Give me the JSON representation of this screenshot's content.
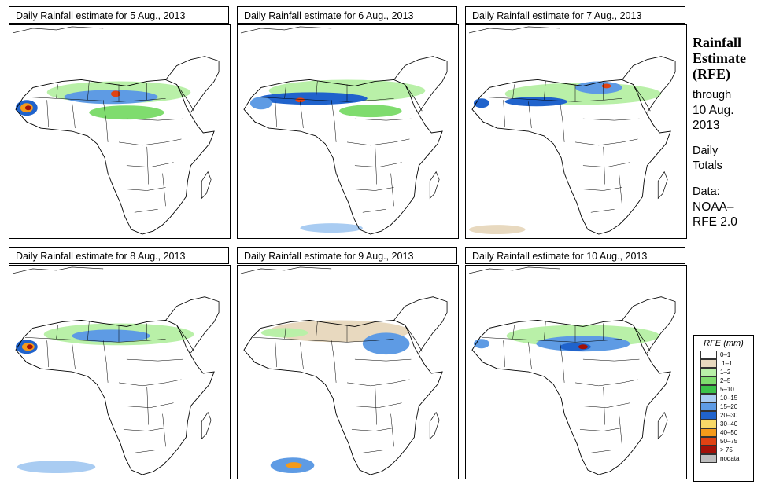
{
  "panels": [
    {
      "title": "Daily Rainfall estimate for  5 Aug., 2013"
    },
    {
      "title": "Daily Rainfall estimate for  6 Aug., 2013"
    },
    {
      "title": "Daily Rainfall estimate for  7 Aug., 2013"
    },
    {
      "title": "Daily Rainfall estimate for  8 Aug., 2013"
    },
    {
      "title": "Daily Rainfall estimate for  9 Aug., 2013"
    },
    {
      "title": "Daily Rainfall estimate for  10 Aug., 2013"
    }
  ],
  "sidebar": {
    "title_line1": "Rainfall",
    "title_line2": "Estimate",
    "title_line3": "(RFE)",
    "through": "through",
    "date_line1": "10 Aug.",
    "date_line2": "2013",
    "daily_line1": "Daily",
    "daily_line2": "Totals",
    "data_label": "Data:",
    "source_line1": "NOAA–",
    "source_line2": "RFE 2.0"
  },
  "legend": {
    "title": "RFE (mm)",
    "items": [
      {
        "label": "0–1",
        "color": "#ffffff"
      },
      {
        "label": ".1–1",
        "color": "#e8d9bf"
      },
      {
        "label": "1–2",
        "color": "#b9f0a8"
      },
      {
        "label": "2–5",
        "color": "#7fdc6e"
      },
      {
        "label": "5–10",
        "color": "#3cc24a"
      },
      {
        "label": "10–15",
        "color": "#a9ccf2"
      },
      {
        "label": "15–20",
        "color": "#5e9be4"
      },
      {
        "label": "20–30",
        "color": "#2063cc"
      },
      {
        "label": "30–40",
        "color": "#f7d968"
      },
      {
        "label": "40–50",
        "color": "#f59a1a"
      },
      {
        "label": "50–75",
        "color": "#e04313"
      },
      {
        "label": "> 75",
        "color": "#a31108"
      },
      {
        "label": "nodata",
        "color": "#bdbdbd"
      }
    ]
  }
}
